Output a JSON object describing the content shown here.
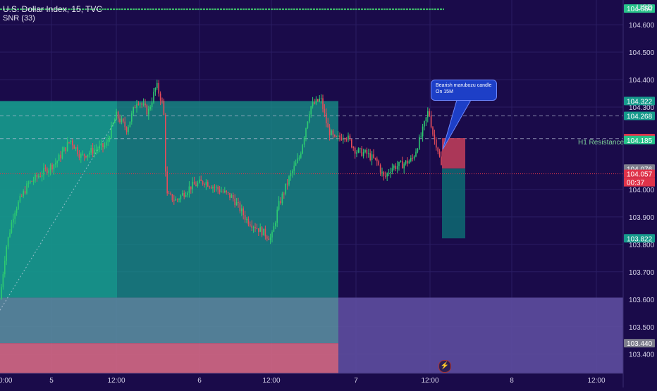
{
  "header": {
    "title": "U.S. Dollar Index, 15, TVC",
    "indicator": "SNR (33)",
    "currency": "USD"
  },
  "annotations": {
    "callout": "Bearish marubozu candle On 15M",
    "resistance_label": "H1 Resistance",
    "countdown": "00:37"
  },
  "colors": {
    "background": "#1a0b4a",
    "up": "#2ecc71",
    "down": "#e74c5a",
    "zone_teal": "#169a8c",
    "zone_grey": "#5a8ea0",
    "zone_pink": "#d86b85",
    "zone_purple": "#5f4fa0",
    "current": "#e0334a"
  },
  "price_badges": [
    {
      "text": "104.659",
      "color": "#27c28a"
    },
    {
      "text": "104.322",
      "color": "#169a8c"
    },
    {
      "text": "104.268",
      "color": "#169a8c"
    },
    {
      "text": "104.187",
      "color": "#e0334a"
    },
    {
      "text": "104.185",
      "color": "#27c28a"
    },
    {
      "text": "104.076",
      "color": "#7d7d8c"
    },
    {
      "text": "104.057",
      "color": "#e0334a"
    },
    {
      "text": "103.822",
      "color": "#169a8c"
    },
    {
      "text": "103.440",
      "color": "#7d7d8c"
    }
  ],
  "chart_data": {
    "type": "candlestick",
    "title": "U.S. Dollar Index, 15, TVC",
    "ylim": [
      103.33,
      104.69
    ],
    "y_ticks": [
      "104.600",
      "104.500",
      "104.400",
      "104.300",
      "104.000",
      "103.900",
      "103.800",
      "103.700",
      "103.600",
      "103.500",
      "103.400"
    ],
    "x_ticks": [
      "5",
      "12:00",
      "6",
      "12:00",
      "7",
      "12:00",
      "8",
      "12:00"
    ],
    "trace": [
      [
        0,
        103.6
      ],
      [
        8,
        103.78
      ],
      [
        20,
        103.92
      ],
      [
        40,
        104.02
      ],
      [
        60,
        104.06
      ],
      [
        80,
        104.1
      ],
      [
        100,
        104.18
      ],
      [
        115,
        104.12
      ],
      [
        130,
        104.14
      ],
      [
        150,
        104.16
      ],
      [
        165,
        104.27
      ],
      [
        180,
        104.22
      ],
      [
        195,
        104.33
      ],
      [
        210,
        104.28
      ],
      [
        222,
        104.38
      ],
      [
        232,
        104.3
      ],
      [
        236,
        103.98
      ],
      [
        250,
        103.96
      ],
      [
        270,
        104.01
      ],
      [
        290,
        104.03
      ],
      [
        310,
        104.0
      ],
      [
        330,
        103.97
      ],
      [
        350,
        103.89
      ],
      [
        370,
        103.85
      ],
      [
        385,
        103.82
      ],
      [
        395,
        103.94
      ],
      [
        410,
        104.04
      ],
      [
        425,
        104.12
      ],
      [
        440,
        104.3
      ],
      [
        455,
        104.33
      ],
      [
        465,
        104.22
      ],
      [
        475,
        104.18
      ],
      [
        490,
        104.2
      ],
      [
        505,
        104.14
      ],
      [
        520,
        104.13
      ],
      [
        535,
        104.1
      ],
      [
        545,
        104.04
      ],
      [
        555,
        104.08
      ],
      [
        570,
        104.09
      ],
      [
        585,
        104.11
      ],
      [
        598,
        104.2
      ],
      [
        608,
        104.29
      ],
      [
        615,
        104.19
      ],
      [
        620,
        104.16
      ],
      [
        628,
        104.06
      ]
    ],
    "zones": [
      {
        "from": 0,
        "to": 166,
        "top": 104.322,
        "bottom": 103.606,
        "color": "teal"
      },
      {
        "from": 166,
        "to": 480,
        "top": 104.322,
        "bottom": 103.606,
        "color": "teal"
      },
      {
        "from": 0,
        "to": 166,
        "top": 103.606,
        "bottom": 103.44,
        "color": "grey"
      },
      {
        "from": 166,
        "to": 480,
        "top": 103.606,
        "bottom": 103.44,
        "color": "grey"
      },
      {
        "from": 0,
        "to": 480,
        "top": 103.44,
        "bottom": 103.33,
        "color": "pink"
      },
      {
        "from": 480,
        "to": 884,
        "top": 103.606,
        "bottom": 103.33,
        "color": "purple"
      }
    ],
    "position": {
      "entry": 104.076,
      "stop": 104.187,
      "target": 103.822
    },
    "levels": {
      "resistance_top": 104.268,
      "resistance_bottom": 104.185,
      "current": 104.057,
      "snr": 104.659
    }
  }
}
